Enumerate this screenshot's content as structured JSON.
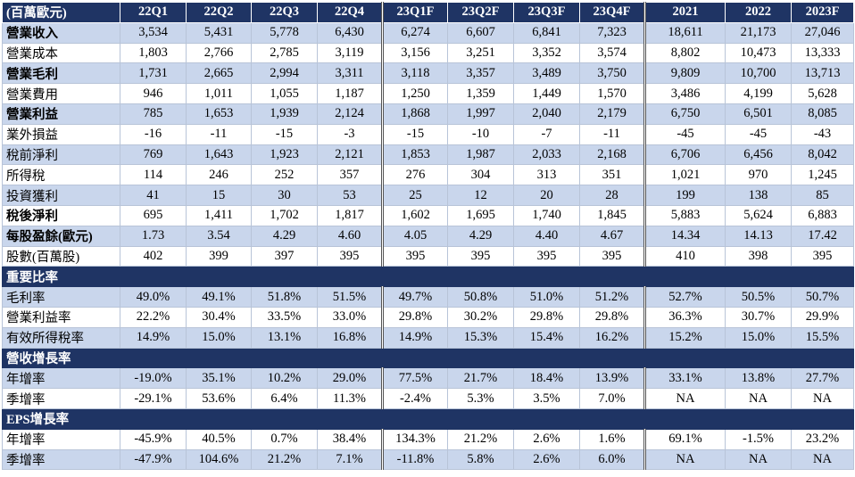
{
  "header": {
    "unit_label": "(百萬歐元)",
    "periods": [
      "22Q1",
      "22Q2",
      "22Q3",
      "22Q4",
      "23Q1F",
      "23Q2F",
      "23Q3F",
      "23Q4F",
      "2021",
      "2022",
      "2023F"
    ]
  },
  "rows": [
    {
      "label": "營業收入",
      "bold": true,
      "shade": true,
      "values": [
        "3,534",
        "5,431",
        "5,778",
        "6,430",
        "6,274",
        "6,607",
        "6,841",
        "7,323",
        "18,611",
        "21,173",
        "27,046"
      ]
    },
    {
      "label": "營業成本",
      "bold": false,
      "shade": false,
      "values": [
        "1,803",
        "2,766",
        "2,785",
        "3,119",
        "3,156",
        "3,251",
        "3,352",
        "3,574",
        "8,802",
        "10,473",
        "13,333"
      ]
    },
    {
      "label": "營業毛利",
      "bold": true,
      "shade": true,
      "values": [
        "1,731",
        "2,665",
        "2,994",
        "3,311",
        "3,118",
        "3,357",
        "3,489",
        "3,750",
        "9,809",
        "10,700",
        "13,713"
      ]
    },
    {
      "label": "營業費用",
      "bold": false,
      "shade": false,
      "values": [
        "946",
        "1,011",
        "1,055",
        "1,187",
        "1,250",
        "1,359",
        "1,449",
        "1,570",
        "3,486",
        "4,199",
        "5,628"
      ]
    },
    {
      "label": "營業利益",
      "bold": true,
      "shade": true,
      "values": [
        "785",
        "1,653",
        "1,939",
        "2,124",
        "1,868",
        "1,997",
        "2,040",
        "2,179",
        "6,750",
        "6,501",
        "8,085"
      ]
    },
    {
      "label": "業外損益",
      "bold": false,
      "shade": false,
      "values": [
        "-16",
        "-11",
        "-15",
        "-3",
        "-15",
        "-10",
        "-7",
        "-11",
        "-45",
        "-45",
        "-43"
      ]
    },
    {
      "label": "稅前淨利",
      "bold": false,
      "shade": true,
      "values": [
        "769",
        "1,643",
        "1,923",
        "2,121",
        "1,853",
        "1,987",
        "2,033",
        "2,168",
        "6,706",
        "6,456",
        "8,042"
      ]
    },
    {
      "label": "所得稅",
      "bold": false,
      "shade": false,
      "values": [
        "114",
        "246",
        "252",
        "357",
        "276",
        "304",
        "313",
        "351",
        "1,021",
        "970",
        "1,245"
      ]
    },
    {
      "label": "投資獲利",
      "bold": false,
      "shade": true,
      "values": [
        "41",
        "15",
        "30",
        "53",
        "25",
        "12",
        "20",
        "28",
        "199",
        "138",
        "85"
      ]
    },
    {
      "label": "稅後淨利",
      "bold": true,
      "shade": false,
      "values": [
        "695",
        "1,411",
        "1,702",
        "1,817",
        "1,602",
        "1,695",
        "1,740",
        "1,845",
        "5,883",
        "5,624",
        "6,883"
      ]
    },
    {
      "label": "每股盈餘(歐元)",
      "bold": true,
      "shade": true,
      "values": [
        "1.73",
        "3.54",
        "4.29",
        "4.60",
        "4.05",
        "4.29",
        "4.40",
        "4.67",
        "14.34",
        "14.13",
        "17.42"
      ]
    },
    {
      "label": "股數(百萬股)",
      "bold": false,
      "shade": false,
      "values": [
        "402",
        "399",
        "397",
        "395",
        "395",
        "395",
        "395",
        "395",
        "410",
        "398",
        "395"
      ]
    },
    {
      "section": "重要比率"
    },
    {
      "label": "毛利率",
      "bold": false,
      "shade": true,
      "values": [
        "49.0%",
        "49.1%",
        "51.8%",
        "51.5%",
        "49.7%",
        "50.8%",
        "51.0%",
        "51.2%",
        "52.7%",
        "50.5%",
        "50.7%"
      ]
    },
    {
      "label": "營業利益率",
      "bold": false,
      "shade": false,
      "values": [
        "22.2%",
        "30.4%",
        "33.5%",
        "33.0%",
        "29.8%",
        "30.2%",
        "29.8%",
        "29.8%",
        "36.3%",
        "30.7%",
        "29.9%"
      ]
    },
    {
      "label": "有效所得稅率",
      "bold": false,
      "shade": true,
      "values": [
        "14.9%",
        "15.0%",
        "13.1%",
        "16.8%",
        "14.9%",
        "15.3%",
        "15.4%",
        "16.2%",
        "15.2%",
        "15.0%",
        "15.5%"
      ]
    },
    {
      "section": "營收增長率"
    },
    {
      "label": "年增率",
      "bold": false,
      "shade": true,
      "values": [
        "-19.0%",
        "35.1%",
        "10.2%",
        "29.0%",
        "77.5%",
        "21.7%",
        "18.4%",
        "13.9%",
        "33.1%",
        "13.8%",
        "27.7%"
      ]
    },
    {
      "label": "季增率",
      "bold": false,
      "shade": false,
      "values": [
        "-29.1%",
        "53.6%",
        "6.4%",
        "11.3%",
        "-2.4%",
        "5.3%",
        "3.5%",
        "7.0%",
        "NA",
        "NA",
        "NA"
      ]
    },
    {
      "section": "EPS增長率"
    },
    {
      "label": "年增率",
      "bold": false,
      "shade": false,
      "values": [
        "-45.9%",
        "40.5%",
        "0.7%",
        "38.4%",
        "134.3%",
        "21.2%",
        "2.6%",
        "1.6%",
        "69.1%",
        "-1.5%",
        "23.2%"
      ]
    },
    {
      "label": "季增率",
      "bold": false,
      "shade": true,
      "values": [
        "-47.9%",
        "104.6%",
        "21.2%",
        "7.1%",
        "-11.8%",
        "5.8%",
        "2.6%",
        "6.0%",
        "NA",
        "NA",
        "NA"
      ]
    }
  ]
}
